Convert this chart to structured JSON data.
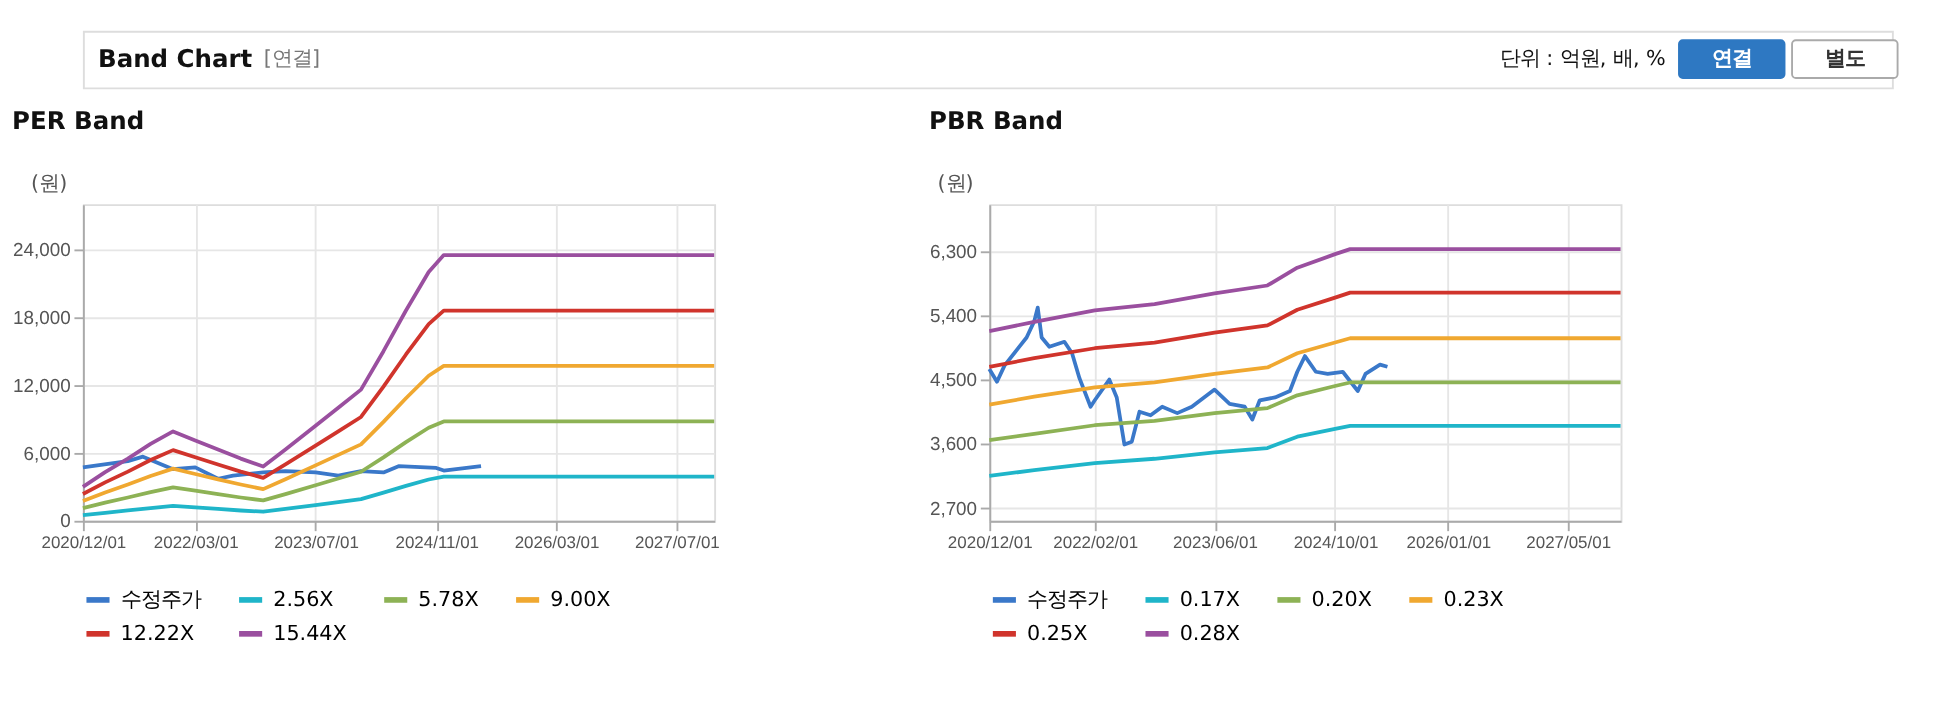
{
  "chart_data": [
    {
      "type": "line",
      "title": "PER Band",
      "annotations": [
        "Band Chart",
        "[연결]",
        "단위 : 억원, 배, %",
        "연결",
        "별도"
      ],
      "ylabel": "(원)",
      "xlim": [
        "2020-12-01",
        "2027-12-01"
      ],
      "xticks": [
        {
          "value": "2020-12-01",
          "label": "2020/12/01"
        },
        {
          "value": "2022-03-01",
          "label": "2022/03/01"
        },
        {
          "value": "2023-07-01",
          "label": "2023/07/01"
        },
        {
          "value": "2024-11-01",
          "label": "2024/11/01"
        },
        {
          "value": "2026-03-01",
          "label": "2026/03/01"
        },
        {
          "value": "2027-07-01",
          "label": "2027/07/01"
        }
      ],
      "ylim": [
        0,
        28000
      ],
      "yticks": [
        {
          "value": 0,
          "label": "0"
        },
        {
          "value": 6000,
          "label": "6,000"
        },
        {
          "value": 12000,
          "label": "12,000"
        },
        {
          "value": 18000,
          "label": "18,000"
        },
        {
          "value": 24000,
          "label": "24,000"
        }
      ],
      "grid": true,
      "legend": "bottom",
      "marker": "none",
      "line_style": "solid",
      "series": [
        {
          "name": "수정주가",
          "color": "#3a78c9",
          "x": [
            "2020-12-01",
            "2021-06-01",
            "2021-08-01",
            "2021-12-01",
            "2022-03-01",
            "2022-06-01",
            "2022-08-01",
            "2022-12-01",
            "2023-03-01",
            "2023-07-01",
            "2023-10-01",
            "2024-01-01",
            "2024-04-01",
            "2024-06-01",
            "2024-11-01",
            "2024-12-01",
            "2025-05-01"
          ],
          "values": [
            4720,
            5280,
            5670,
            4560,
            4720,
            3720,
            4000,
            4280,
            4390,
            4280,
            4000,
            4390,
            4280,
            4830,
            4670,
            4440,
            4830
          ]
        },
        {
          "name": "2.56X",
          "color": "#1fb5c9",
          "values": [
            500,
            710,
            910,
            1130,
            1310,
            1180,
            1050,
            910,
            800,
            1050,
            1390,
            1660,
            1920,
            2490,
            3090,
            3650,
            3900,
            3900
          ]
        },
        {
          "name": "5.78X",
          "color": "#8db255",
          "values": [
            1120,
            1610,
            2060,
            2540,
            2950,
            2660,
            2360,
            2060,
            1800,
            2360,
            3140,
            3740,
            4340,
            5610,
            6960,
            8230,
            8790,
            8790
          ]
        },
        {
          "name": "9.00X",
          "color": "#f0a830",
          "values": [
            1750,
            2510,
            3210,
            3960,
            4610,
            4140,
            3670,
            3210,
            2800,
            3670,
            4900,
            5830,
            6760,
            8750,
            10840,
            12830,
            13700,
            13700
          ]
        },
        {
          "name": "12.22X",
          "color": "#d0342c",
          "values": [
            2370,
            3400,
            4350,
            5380,
            6250,
            5620,
            4980,
            4350,
            3800,
            4980,
            6640,
            7910,
            9180,
            11870,
            14710,
            17400,
            18590,
            18590
          ]
        },
        {
          "name": "15.44X",
          "color": "#9a4f9f",
          "values": [
            3000,
            4300,
            5500,
            6800,
            7900,
            7100,
            6300,
            5500,
            4800,
            6300,
            8400,
            10000,
            11600,
            15000,
            18600,
            22000,
            23500,
            23500
          ]
        }
      ],
      "x": [
        "2020-12-01",
        "2021-03-01",
        "2021-06-01",
        "2021-09-01",
        "2021-12-01",
        "2022-03-01",
        "2022-06-01",
        "2022-09-01",
        "2022-12-01",
        "2023-03-01",
        "2023-07-01",
        "2023-10-01",
        "2024-01-01",
        "2024-04-01",
        "2024-07-01",
        "2024-10-01",
        "2024-12-01",
        "2027-12-01"
      ]
    },
    {
      "type": "line",
      "title": "PBR Band",
      "ylabel": "(원)",
      "xlim": [
        "2020-12-01",
        "2027-12-01"
      ],
      "xticks": [
        {
          "value": "2020-12-01",
          "label": "2020/12/01"
        },
        {
          "value": "2022-02-01",
          "label": "2022/02/01"
        },
        {
          "value": "2023-06-01",
          "label": "2023/06/01"
        },
        {
          "value": "2024-10-01",
          "label": "2024/10/01"
        },
        {
          "value": "2026-01-01",
          "label": "2026/01/01"
        },
        {
          "value": "2027-05-01",
          "label": "2027/05/01"
        }
      ],
      "ylim": [
        2520,
        6960
      ],
      "yticks": [
        {
          "value": 2700,
          "label": "2,700"
        },
        {
          "value": 3600,
          "label": "3,600"
        },
        {
          "value": 4500,
          "label": "4,500"
        },
        {
          "value": 5400,
          "label": "5,400"
        },
        {
          "value": 6300,
          "label": "6,300"
        }
      ],
      "grid": true,
      "legend": "bottom",
      "marker": "none",
      "line_style": "solid",
      "series": [
        {
          "name": "수정주가",
          "color": "#3a78c9",
          "x": [
            "2020-12-01",
            "2021-01-01",
            "2021-02-01",
            "2021-04-01",
            "2021-05-01",
            "2021-06-01",
            "2021-06-15",
            "2021-07-01",
            "2021-08-01",
            "2021-10-01",
            "2021-11-01",
            "2021-12-01",
            "2022-01-15",
            "2022-02-01",
            "2022-04-01",
            "2022-05-01",
            "2022-06-01",
            "2022-07-01",
            "2022-08-01",
            "2022-09-15",
            "2022-11-01",
            "2023-01-01",
            "2023-03-01",
            "2023-06-01",
            "2023-08-01",
            "2023-10-01",
            "2023-11-01",
            "2023-12-01",
            "2024-02-01",
            "2024-04-01",
            "2024-05-01",
            "2024-06-01",
            "2024-07-15",
            "2024-09-01",
            "2024-11-01",
            "2025-01-01",
            "2025-02-01",
            "2025-04-01",
            "2025-05-01"
          ],
          "values": [
            4650,
            4470,
            4700,
            4960,
            5090,
            5320,
            5510,
            5090,
            4960,
            5030,
            4870,
            4520,
            4120,
            4210,
            4500,
            4250,
            3590,
            3630,
            4050,
            4000,
            4120,
            4030,
            4120,
            4360,
            4160,
            4120,
            3940,
            4210,
            4250,
            4340,
            4610,
            4830,
            4610,
            4580,
            4610,
            4340,
            4580,
            4710,
            4680
          ]
        },
        {
          "name": "0.17X",
          "color": "#1fb5c9",
          "values": [
            3150,
            3230,
            3330,
            3390,
            3480,
            3540,
            3700,
            3810,
            3850,
            3850
          ]
        },
        {
          "name": "0.20X",
          "color": "#8db255",
          "values": [
            3650,
            3740,
            3860,
            3920,
            4030,
            4100,
            4280,
            4410,
            4460,
            4460
          ]
        },
        {
          "name": "0.23X",
          "color": "#f0a830",
          "values": [
            4150,
            4260,
            4390,
            4460,
            4580,
            4670,
            4870,
            5020,
            5080,
            5080
          ]
        },
        {
          "name": "0.25X",
          "color": "#d0342c",
          "values": [
            4680,
            4800,
            4940,
            5020,
            5160,
            5260,
            5480,
            5650,
            5720,
            5720
          ]
        },
        {
          "name": "0.28X",
          "color": "#9a4f9f",
          "values": [
            5180,
            5310,
            5470,
            5560,
            5710,
            5820,
            6070,
            6260,
            6330,
            6330
          ]
        }
      ],
      "x": [
        "2020-12-01",
        "2021-06-01",
        "2022-02-01",
        "2022-10-01",
        "2023-06-01",
        "2024-01-01",
        "2024-05-01",
        "2024-10-01",
        "2024-12-01",
        "2027-12-01"
      ]
    }
  ]
}
